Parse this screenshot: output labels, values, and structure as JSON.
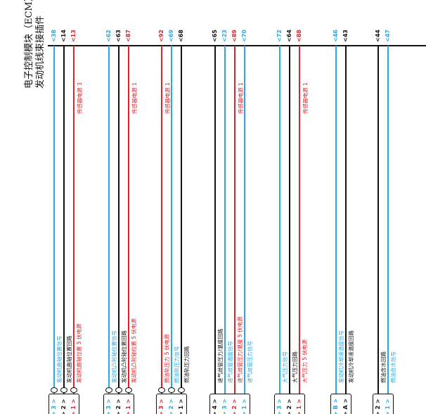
{
  "colors": {
    "blue": "#29a8e0",
    "red": "#e0202a",
    "black": "#111111"
  },
  "header": {
    "line1": "电子控制模块（ECM）",
    "line2": "发动机线束接插件"
  },
  "groups": [
    {
      "id": "crank",
      "twisted": true,
      "wires": [
        {
          "pin": "38",
          "color": "blue",
          "label": "发动机曲轴位置信号",
          "term": "3"
        },
        {
          "pin": "14",
          "color": "black",
          "label": "发动机曲轴位置回路",
          "term": "2"
        },
        {
          "pin": "13",
          "color": "red",
          "label": "发动机曲轴位置 5 伏电源",
          "term": "1",
          "sensor": "传感器电源 3"
        }
      ]
    },
    {
      "id": "cam",
      "twisted": true,
      "wires": [
        {
          "pin": "62",
          "color": "blue",
          "label": "发动机凸轮轴位置信号",
          "term": "3"
        },
        {
          "pin": "63",
          "color": "black",
          "label": "发动机凸轮轴位置回路",
          "term": "2"
        },
        {
          "pin": "87",
          "color": "red",
          "label": "发动机凸轮轴位置 5 伏电源",
          "term": "1",
          "sensor": "传感器电源 1"
        }
      ]
    },
    {
      "id": "fuel",
      "twisted": true,
      "wires": [
        {
          "pin": "92",
          "color": "red",
          "label": "燃油轨压力 5 伏电源",
          "term": "3",
          "sensor": "传感器电源 1"
        },
        {
          "pin": "69",
          "color": "blue",
          "label": "燃油轨压力信号",
          "term": "2"
        },
        {
          "pin": "68",
          "color": "black",
          "label": "燃油轨压力回路",
          "term": "1"
        }
      ]
    },
    {
      "id": "intake",
      "twisted": false,
      "wires": [
        {
          "pin": "65",
          "color": "black",
          "label": "进气歧管压力/温度回路",
          "term": "4"
        },
        {
          "pin": "23",
          "color": "blue",
          "label": "进气歧管温度信号",
          "term": "3"
        },
        {
          "pin": "89",
          "color": "red",
          "label": "进气歧管压力/温度 5 伏电源",
          "term": "2",
          "sensor": "传感器电源 1"
        },
        {
          "pin": "70",
          "color": "blue",
          "label": "进气歧管压力信号",
          "term": "1"
        }
      ]
    },
    {
      "id": "baro",
      "twisted": false,
      "wires": [
        {
          "pin": "72",
          "color": "blue",
          "label": "大气压力信号",
          "term": "3"
        },
        {
          "pin": "64",
          "color": "black",
          "label": "大气压力回路",
          "term": "2"
        },
        {
          "pin": "88",
          "color": "red",
          "label": "大气压力 5 伏电源",
          "term": "1",
          "sensor": "传感器电源 1"
        }
      ]
    },
    {
      "id": "coolant",
      "twisted": false,
      "wires": [
        {
          "pin": "46",
          "color": "blue",
          "label": "发动机冷却液温度信号",
          "term": "B"
        },
        {
          "pin": "43",
          "color": "black",
          "label": "发动机冷却液温度回路",
          "term": "A"
        }
      ]
    },
    {
      "id": "water",
      "twisted": false,
      "wires": [
        {
          "pin": "44",
          "color": "black",
          "label": "燃油含水回路",
          "term": "2"
        },
        {
          "pin": "47",
          "color": "blue",
          "label": "燃油含水信号",
          "term": "1"
        }
      ]
    }
  ]
}
